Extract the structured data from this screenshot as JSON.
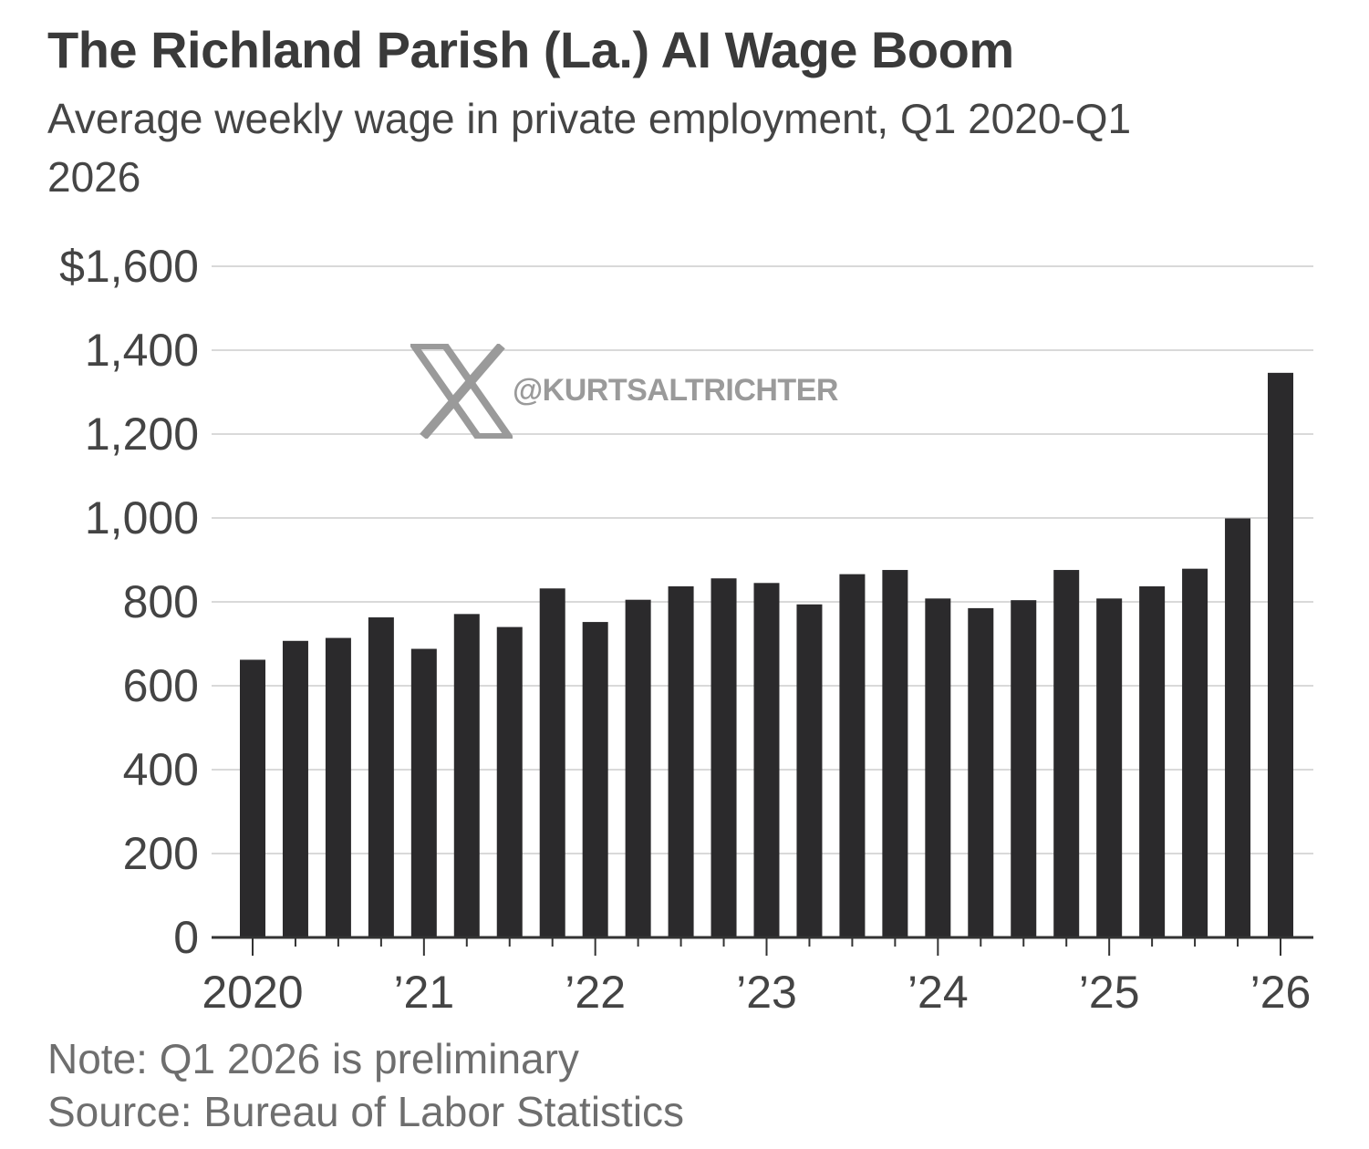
{
  "title": "The Richland Parish (La.) AI Wage Boom",
  "subtitle": "Average weekly wage in private employment, Q1 2020-Q1 2026",
  "note": "Note: Q1 2026 is preliminary",
  "source": "Source: Bureau of Labor Statistics",
  "watermark": {
    "icon": "x-logo-icon",
    "handle": "@KURTSALTRICHTER"
  },
  "colors": {
    "bar": "#2b2a2c",
    "grid": "#d9d9d9",
    "axis": "#333333",
    "tick_text": "#444444"
  },
  "chart_data": {
    "type": "bar",
    "title": "The Richland Parish (La.) AI Wage Boom",
    "subtitle": "Average weekly wage in private employment, Q1 2020-Q1 2026",
    "xlabel": "",
    "ylabel": "",
    "ylim": [
      0,
      1600
    ],
    "yticks": [
      0,
      200,
      400,
      600,
      800,
      1000,
      1200,
      1400,
      1600
    ],
    "ytick_labels": [
      "0",
      "200",
      "400",
      "600",
      "800",
      "1,000",
      "1,200",
      "1,400",
      "$1,600"
    ],
    "grid": true,
    "legend": "none",
    "categories": [
      "Q1 2020",
      "Q2 2020",
      "Q3 2020",
      "Q4 2020",
      "Q1 2021",
      "Q2 2021",
      "Q3 2021",
      "Q4 2021",
      "Q1 2022",
      "Q2 2022",
      "Q3 2022",
      "Q4 2022",
      "Q1 2023",
      "Q2 2023",
      "Q3 2023",
      "Q4 2023",
      "Q1 2024",
      "Q2 2024",
      "Q3 2024",
      "Q4 2024",
      "Q1 2025",
      "Q2 2025",
      "Q3 2025",
      "Q4 2025",
      "Q1 2026"
    ],
    "values": [
      662,
      707,
      714,
      763,
      688,
      771,
      740,
      832,
      752,
      805,
      837,
      856,
      845,
      794,
      866,
      876,
      808,
      785,
      804,
      876,
      808,
      837,
      879,
      999,
      1346
    ],
    "xtick_labels": [
      {
        "label": "2020",
        "index": 0
      },
      {
        "label": "’21",
        "index": 4
      },
      {
        "label": "’22",
        "index": 8
      },
      {
        "label": "’23",
        "index": 12
      },
      {
        "label": "’24",
        "index": 16
      },
      {
        "label": "’25",
        "index": 20
      },
      {
        "label": "’26",
        "index": 24
      }
    ]
  }
}
